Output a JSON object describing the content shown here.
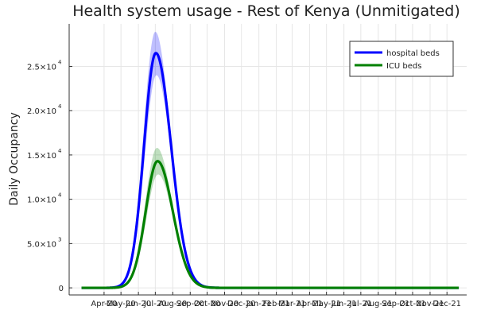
{
  "chart_data": {
    "type": "line",
    "title": "Health system usage - Rest of Kenya (Unmitigated)",
    "xlabel": "",
    "ylabel": "Daily Occupancy",
    "x_tick_labels": [
      "Apr-20",
      "May-20",
      "Jun-20",
      "Jul-20",
      "Aug-20",
      "Sep-20",
      "Oct-20",
      "Nov-20",
      "Dec-20",
      "Jan-21",
      "Feb-21",
      "Mar-21",
      "Apr-21",
      "May-21",
      "Jun-21",
      "Jul-21",
      "Aug-21",
      "Sep-21",
      "Oct-21",
      "Nov-21",
      "Dec-21"
    ],
    "x_tick_days": [
      0,
      30,
      61,
      91,
      122,
      153,
      183,
      214,
      244,
      275,
      306,
      334,
      365,
      395,
      426,
      456,
      487,
      518,
      548,
      579,
      609
    ],
    "xlim": [
      -62,
      644
    ],
    "x_range": [
      -40,
      630
    ],
    "y_ticks": [
      {
        "mant": "0",
        "exp": ""
      },
      {
        "mant": "5.0×10",
        "exp": "3"
      },
      {
        "mant": "1.0×10",
        "exp": "4"
      },
      {
        "mant": "1.5×10",
        "exp": "4"
      },
      {
        "mant": "2.0×10",
        "exp": "4"
      },
      {
        "mant": "2.5×10",
        "exp": "4"
      }
    ],
    "y_tick_values": [
      0,
      5000,
      10000,
      15000,
      20000,
      25000
    ],
    "ylim": [
      -800,
      29800
    ],
    "grid": true,
    "legend_position": "top-right",
    "series": [
      {
        "name": "hospital beds",
        "color": "#0000ff",
        "peak_day": 92,
        "peak": 26500,
        "band_high": 28900,
        "band_low": 24000,
        "rise_width": 21,
        "fall_width": 27
      },
      {
        "name": "ICU beds",
        "color": "#008000",
        "peak_day": 95,
        "peak": 14300,
        "band_high": 15800,
        "band_low": 12800,
        "rise_width": 21,
        "fall_width": 27
      }
    ]
  }
}
